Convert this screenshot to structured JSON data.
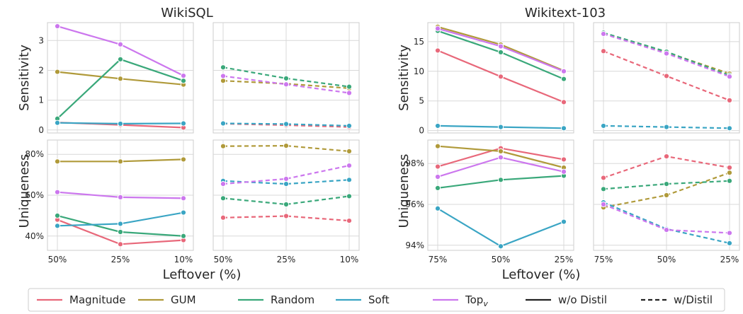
{
  "titles": [
    "WikiSQL",
    "Wikitext-103"
  ],
  "xlabels": [
    "Leftover (%)",
    "Leftover (%)"
  ],
  "ylabels": {
    "sensitivity": "Sensitivity",
    "uniqueness": "Uniqueness"
  },
  "legend": [
    {
      "label": "Magnitude",
      "color": "#e8687a",
      "dash": false
    },
    {
      "label": "GUM",
      "color": "#b09a3a",
      "dash": false
    },
    {
      "label": "Random",
      "color": "#3aa87a",
      "dash": false
    },
    {
      "label": "Soft",
      "color": "#3aa5c4",
      "dash": false
    },
    {
      "label": "Top",
      "sub": "v",
      "color": "#cc77ee",
      "dash": false
    },
    {
      "label": "w/o Distil",
      "color": "#222222",
      "dash": false
    },
    {
      "label": "w/Distil",
      "color": "#222222",
      "dash": true
    }
  ],
  "chart_data": [
    {
      "type": "line",
      "id": "wikisql-sens-nodistil",
      "dataset": "WikiSQL",
      "metric": "Sensitivity",
      "distil": false,
      "categories": [
        "50%",
        "25%",
        "10%"
      ],
      "ylim": [
        -0.1,
        3.6
      ],
      "yticks": [
        0,
        1,
        2,
        3
      ],
      "ytick_labels": [
        "0",
        "1",
        "2",
        "3"
      ],
      "series": [
        {
          "name": "Magnitude",
          "values": [
            0.25,
            0.17,
            0.08
          ]
        },
        {
          "name": "GUM",
          "values": [
            1.95,
            1.72,
            1.52
          ]
        },
        {
          "name": "Random",
          "values": [
            0.38,
            2.37,
            1.65
          ]
        },
        {
          "name": "Soft",
          "values": [
            0.24,
            0.21,
            0.22
          ]
        },
        {
          "name": "Topv",
          "values": [
            3.48,
            2.87,
            1.82
          ]
        }
      ]
    },
    {
      "type": "line",
      "id": "wikisql-sens-distil",
      "dataset": "WikiSQL",
      "metric": "Sensitivity",
      "distil": true,
      "categories": [
        "50%",
        "25%",
        "10%"
      ],
      "ylim": [
        -0.1,
        3.6
      ],
      "yticks": [
        0,
        1,
        2,
        3
      ],
      "ytick_labels": [],
      "series": [
        {
          "name": "Magnitude",
          "values": [
            0.21,
            0.16,
            0.1
          ]
        },
        {
          "name": "GUM",
          "values": [
            1.65,
            1.55,
            1.4
          ]
        },
        {
          "name": "Random",
          "values": [
            2.1,
            1.73,
            1.45
          ]
        },
        {
          "name": "Soft",
          "values": [
            0.22,
            0.2,
            0.14
          ]
        },
        {
          "name": "Topv",
          "values": [
            1.81,
            1.53,
            1.24
          ]
        }
      ]
    },
    {
      "type": "line",
      "id": "wikitext-sens-nodistil",
      "dataset": "Wikitext-103",
      "metric": "Sensitivity",
      "distil": false,
      "categories": [
        "75%",
        "50%",
        "25%"
      ],
      "ylim": [
        -0.4,
        18.2
      ],
      "yticks": [
        0,
        5,
        10,
        15
      ],
      "ytick_labels": [
        "0",
        "5",
        "10",
        "15"
      ],
      "series": [
        {
          "name": "Magnitude",
          "values": [
            13.5,
            9.1,
            4.8
          ]
        },
        {
          "name": "GUM",
          "values": [
            17.5,
            14.5,
            10.1
          ]
        },
        {
          "name": "Random",
          "values": [
            16.8,
            13.2,
            8.7
          ]
        },
        {
          "name": "Soft",
          "values": [
            0.8,
            0.6,
            0.4
          ]
        },
        {
          "name": "Topv",
          "values": [
            17.2,
            14.2,
            10.0
          ]
        }
      ]
    },
    {
      "type": "line",
      "id": "wikitext-sens-distil",
      "dataset": "Wikitext-103",
      "metric": "Sensitivity",
      "distil": true,
      "categories": [
        "75%",
        "50%",
        "25%"
      ],
      "ylim": [
        -0.4,
        18.2
      ],
      "yticks": [
        0,
        5,
        10,
        15
      ],
      "ytick_labels": [],
      "series": [
        {
          "name": "Magnitude",
          "values": [
            13.4,
            9.2,
            5.1
          ]
        },
        {
          "name": "GUM",
          "values": [
            16.4,
            13.2,
            9.6
          ]
        },
        {
          "name": "Random",
          "values": [
            16.5,
            13.3,
            9.3
          ]
        },
        {
          "name": "Soft",
          "values": [
            0.8,
            0.6,
            0.4
          ]
        },
        {
          "name": "Topv",
          "values": [
            16.3,
            13.0,
            9.1
          ]
        }
      ]
    },
    {
      "type": "line",
      "id": "wikisql-uniq-nodistil",
      "dataset": "WikiSQL",
      "metric": "Uniqueness",
      "distil": false,
      "categories": [
        "50%",
        "25%",
        "10%"
      ],
      "ylim": [
        33,
        87
      ],
      "yticks": [
        40,
        60,
        80
      ],
      "ytick_labels": [
        "40%",
        "60%",
        "80%"
      ],
      "series": [
        {
          "name": "Magnitude",
          "values": [
            48,
            36,
            38
          ]
        },
        {
          "name": "GUM",
          "values": [
            76.5,
            76.5,
            77.5
          ]
        },
        {
          "name": "Random",
          "values": [
            50,
            42,
            40
          ]
        },
        {
          "name": "Soft",
          "values": [
            45,
            46,
            51.5
          ]
        },
        {
          "name": "Topv",
          "values": [
            61.5,
            59,
            58.5
          ]
        }
      ]
    },
    {
      "type": "line",
      "id": "wikisql-uniq-distil",
      "dataset": "WikiSQL",
      "metric": "Uniqueness",
      "distil": true,
      "categories": [
        "50%",
        "25%",
        "10%"
      ],
      "ylim": [
        33,
        87
      ],
      "yticks": [
        40,
        60,
        80
      ],
      "ytick_labels": [],
      "series": [
        {
          "name": "Magnitude",
          "values": [
            49,
            49.8,
            47.5
          ]
        },
        {
          "name": "GUM",
          "values": [
            84,
            84.2,
            81.5
          ]
        },
        {
          "name": "Random",
          "values": [
            58.5,
            55.5,
            59.5
          ]
        },
        {
          "name": "Soft",
          "values": [
            67,
            65.5,
            67.5
          ]
        },
        {
          "name": "Topv",
          "values": [
            65.5,
            68,
            74.5
          ]
        }
      ]
    },
    {
      "type": "line",
      "id": "wikitext-uniq-nodistil",
      "dataset": "Wikitext-103",
      "metric": "Uniqueness",
      "distil": false,
      "categories": [
        "75%",
        "50%",
        "25%"
      ],
      "ylim": [
        93.75,
        99.15
      ],
      "yticks": [
        94,
        96,
        98
      ],
      "ytick_labels": [
        "94%",
        "96%",
        "98%"
      ],
      "series": [
        {
          "name": "Magnitude",
          "values": [
            97.85,
            98.75,
            98.2
          ]
        },
        {
          "name": "GUM",
          "values": [
            98.85,
            98.6,
            97.8
          ]
        },
        {
          "name": "Random",
          "values": [
            96.8,
            97.2,
            97.4
          ]
        },
        {
          "name": "Soft",
          "values": [
            95.8,
            93.95,
            95.15
          ]
        },
        {
          "name": "Topv",
          "values": [
            97.35,
            98.3,
            97.6
          ]
        }
      ]
    },
    {
      "type": "line",
      "id": "wikitext-uniq-distil",
      "dataset": "Wikitext-103",
      "metric": "Uniqueness",
      "distil": true,
      "categories": [
        "75%",
        "50%",
        "25%"
      ],
      "ylim": [
        93.75,
        99.15
      ],
      "yticks": [
        94,
        96,
        98
      ],
      "ytick_labels": [],
      "series": [
        {
          "name": "Magnitude",
          "values": [
            97.3,
            98.35,
            97.8
          ]
        },
        {
          "name": "GUM",
          "values": [
            95.85,
            96.45,
            97.55
          ]
        },
        {
          "name": "Random",
          "values": [
            96.75,
            97.0,
            97.15
          ]
        },
        {
          "name": "Soft",
          "values": [
            96.1,
            94.8,
            94.1
          ]
        },
        {
          "name": "Topv",
          "values": [
            96.0,
            94.75,
            94.6
          ]
        }
      ]
    }
  ]
}
